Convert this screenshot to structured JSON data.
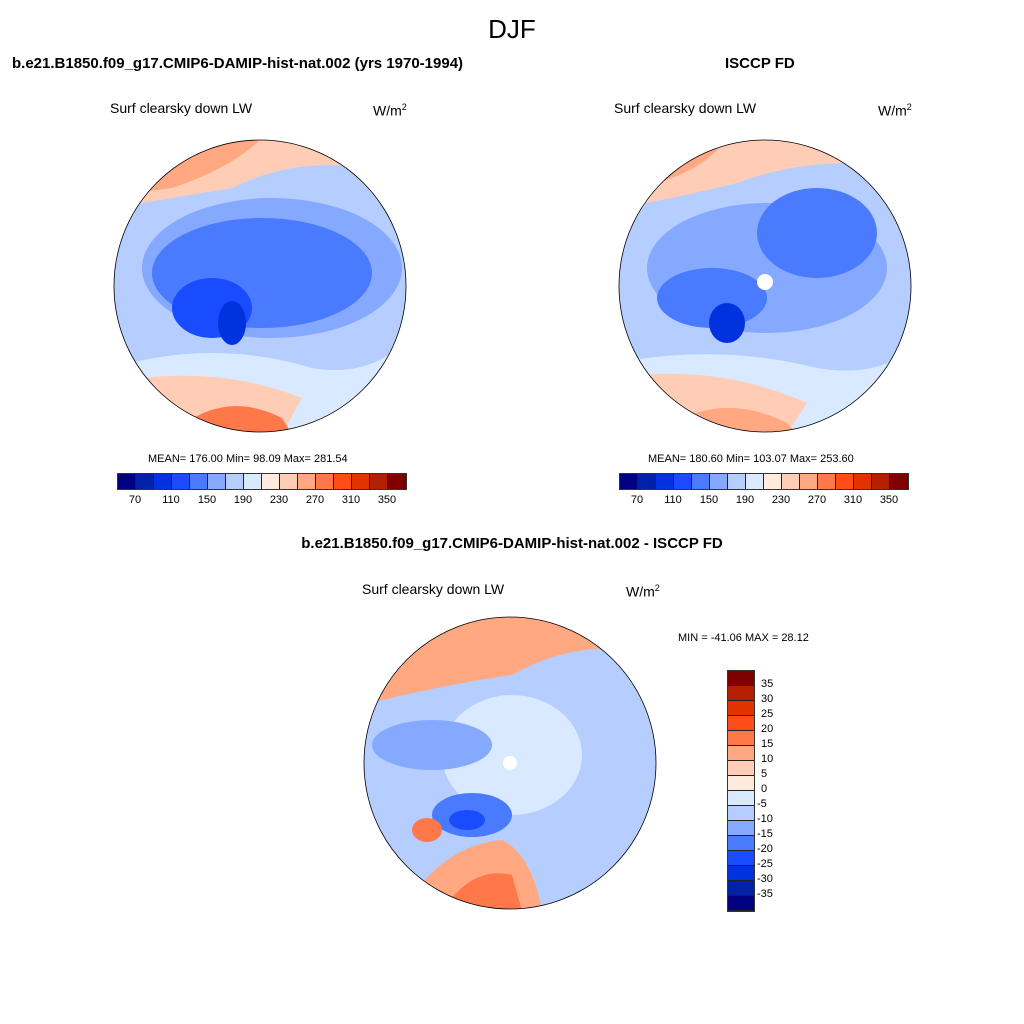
{
  "title": "DJF",
  "season": "DJF",
  "panels": [
    {
      "title": "b.e21.B1850.f09_g17.CMIP6-DAMIP-hist-nat.002 (yrs 1970-1994)",
      "variable": "Surf clearsky down LW",
      "units": "W/m",
      "units_sup": "2",
      "stats": "MEAN= 176.00  Min=  98.09  Max= 281.54"
    },
    {
      "title": "ISCCP FD",
      "variable": "Surf clearsky down LW",
      "units": "W/m",
      "units_sup": "2",
      "stats": "MEAN= 180.60  Min= 103.07  Max= 253.60"
    },
    {
      "title": "b.e21.B1850.f09_g17.CMIP6-DAMIP-hist-nat.002 - ISCCP FD",
      "variable": "Surf clearsky down LW",
      "units": "W/m",
      "units_sup": "2",
      "stats": "MIN = -41.06 MAX =  28.12"
    }
  ],
  "colorbar_top": {
    "labels": [
      "70",
      "110",
      "150",
      "190",
      "230",
      "270",
      "310",
      "350"
    ]
  },
  "colorbar_diff": {
    "labels": [
      "35",
      "30",
      "25",
      "20",
      "15",
      "10",
      "5",
      "0",
      "-5",
      "-10",
      "-15",
      "-20",
      "-25",
      "-30",
      "-35"
    ]
  },
  "colors": [
    "#000080",
    "#0022a8",
    "#0033dd",
    "#1a4cff",
    "#4a7bff",
    "#85a9ff",
    "#b5cdff",
    "#d9e9ff",
    "#ffeadb",
    "#ffcdb5",
    "#ffa882",
    "#ff784a",
    "#ff4d1a",
    "#e03300",
    "#b32000",
    "#800000"
  ]
}
